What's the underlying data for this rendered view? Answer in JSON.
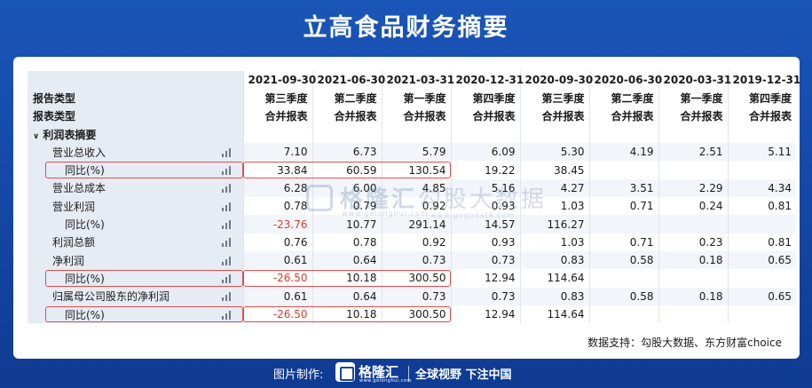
{
  "page": {
    "title": "立高食品财务摘要",
    "source_note": "数据支持：勾股大数据、东方财富choice"
  },
  "table": {
    "header_rows": [
      {
        "label": "",
        "cells": [
          "2021-09-30",
          "2021-06-30",
          "2021-03-31",
          "2020-12-31",
          "2020-09-30",
          "2020-06-30",
          "2020-03-31",
          "2019-12-31"
        ]
      },
      {
        "label": "报告类型",
        "cells": [
          "第三季度",
          "第二季度",
          "第一季度",
          "第四季度",
          "第三季度",
          "第二季度",
          "第一季度",
          "第四季度"
        ]
      },
      {
        "label": "报表类型",
        "cells": [
          "合并报表",
          "合并报表",
          "合并报表",
          "合并报表",
          "合并报表",
          "合并报表",
          "合并报表",
          "合并报表"
        ]
      }
    ],
    "section_label": "利润表摘要",
    "rows": [
      {
        "label": "营业总收入",
        "indent": 1,
        "highlight": false,
        "cells": [
          "7.10",
          "6.73",
          "5.79",
          "6.09",
          "5.30",
          "4.19",
          "2.51",
          "5.11"
        ],
        "red": []
      },
      {
        "label": "同比(%)",
        "indent": 2,
        "highlight": true,
        "cells": [
          "33.84",
          "60.59",
          "130.54",
          "19.22",
          "38.45",
          "",
          "",
          ""
        ],
        "red": []
      },
      {
        "label": "营业总成本",
        "indent": 1,
        "highlight": false,
        "cells": [
          "6.28",
          "6.00",
          "4.85",
          "5.16",
          "4.27",
          "3.51",
          "2.29",
          "4.34"
        ],
        "red": []
      },
      {
        "label": "营业利润",
        "indent": 1,
        "highlight": false,
        "cells": [
          "0.78",
          "0.79",
          "0.92",
          "0.93",
          "1.03",
          "0.71",
          "0.24",
          "0.81"
        ],
        "red": []
      },
      {
        "label": "同比(%)",
        "indent": 2,
        "highlight": false,
        "cells": [
          "-23.76",
          "10.77",
          "291.14",
          "14.57",
          "116.27",
          "",
          "",
          ""
        ],
        "red": [
          0
        ]
      },
      {
        "label": "利润总额",
        "indent": 1,
        "highlight": false,
        "cells": [
          "0.76",
          "0.78",
          "0.92",
          "0.93",
          "1.03",
          "0.71",
          "0.23",
          "0.81"
        ],
        "red": []
      },
      {
        "label": "净利润",
        "indent": 1,
        "highlight": false,
        "cells": [
          "0.61",
          "0.64",
          "0.73",
          "0.73",
          "0.83",
          "0.58",
          "0.18",
          "0.65"
        ],
        "red": []
      },
      {
        "label": "同比(%)",
        "indent": 2,
        "highlight": true,
        "cells": [
          "-26.50",
          "10.18",
          "300.50",
          "12.94",
          "114.64",
          "",
          "",
          ""
        ],
        "red": [
          0
        ]
      },
      {
        "label": "归属母公司股东的净利润",
        "indent": 1,
        "highlight": false,
        "cells": [
          "0.61",
          "0.64",
          "0.73",
          "0.73",
          "0.83",
          "0.58",
          "0.18",
          "0.65"
        ],
        "red": []
      },
      {
        "label": "同比(%)",
        "indent": 2,
        "highlight": true,
        "cells": [
          "-26.50",
          "10.18",
          "300.50",
          "12.94",
          "114.64",
          "",
          "",
          ""
        ],
        "red": [
          0
        ]
      }
    ]
  },
  "watermark": {
    "left_brand": "格隆汇",
    "left_url": "www.gelonghui.com",
    "right_brand": "勾股大数据",
    "right_url": "www.gogudata.com"
  },
  "footer": {
    "made_by": "图片制作:",
    "brand": "格隆汇",
    "brand_url": "www.gelonghui.com",
    "slogan": "全球视野 下注中国"
  },
  "colors": {
    "background": "#1446a4",
    "negative_value": "#e03a2c",
    "highlight_border": "#e04a4a",
    "label_column": "#e6ecf4"
  }
}
